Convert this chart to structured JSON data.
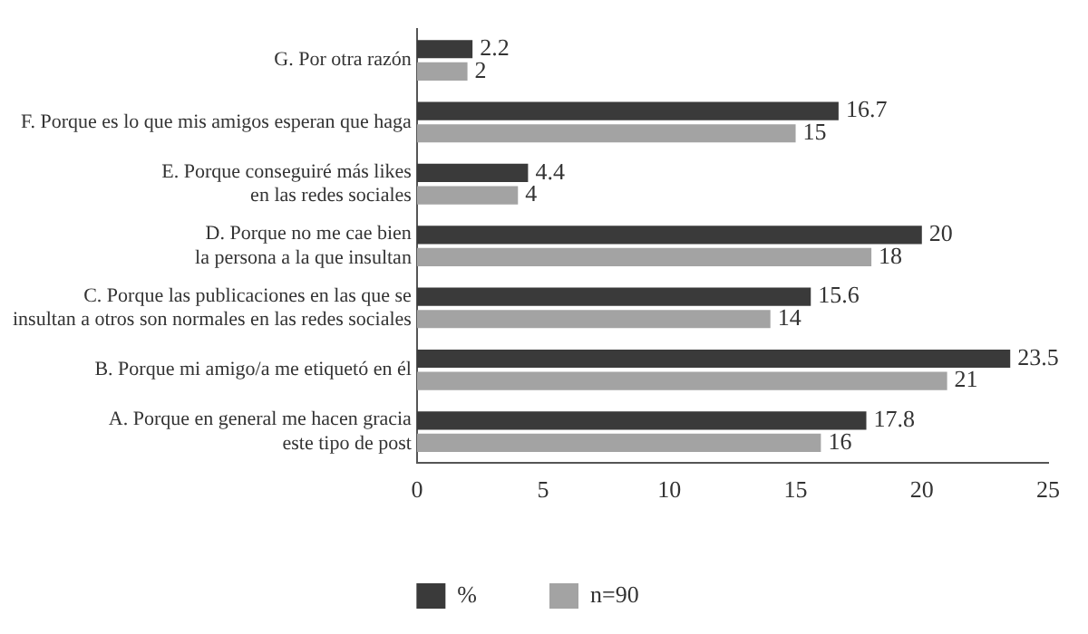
{
  "chart_data": {
    "type": "bar",
    "orientation": "horizontal",
    "categories": [
      "G. Por otra razón",
      "F. Porque es lo que mis amigos esperan que haga",
      "E. Porque conseguiré más likes\nen las redes sociales",
      "D. Porque no me cae bien\nla persona a la que insultan",
      "C. Porque las publicaciones en las que se\ninsultan a otros son normales en las redes sociales",
      "B. Porque mi amigo/a me etiquetó en él",
      "A. Porque en general me hacen gracia\neste tipo de post"
    ],
    "series": [
      {
        "name": "%",
        "color": "#3a3a3a",
        "values": [
          2.2,
          16.7,
          4.4,
          20,
          15.6,
          23.5,
          17.8
        ]
      },
      {
        "name": "n=90",
        "color": "#a3a3a3",
        "values": [
          2,
          15,
          4,
          18,
          14,
          21,
          16
        ]
      }
    ],
    "xlim": [
      0,
      25
    ],
    "xticks": [
      0,
      5,
      10,
      15,
      20,
      25
    ],
    "grid": false,
    "legend": "bottom",
    "data_labels": true
  }
}
